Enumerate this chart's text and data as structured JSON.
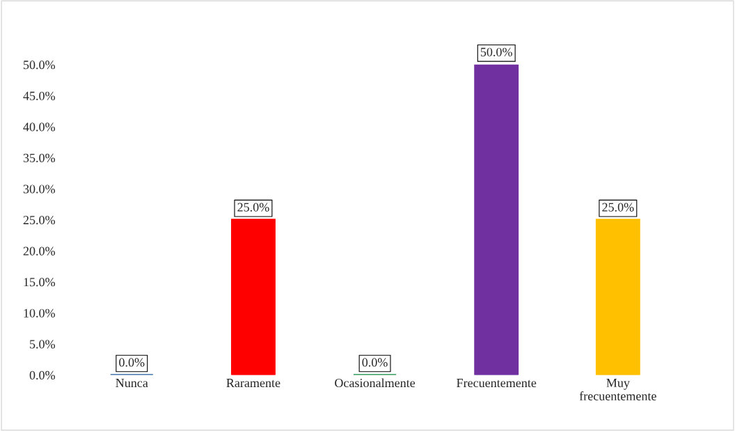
{
  "chart_data": {
    "type": "bar",
    "categories": [
      "Nunca",
      "Raramente",
      "Ocasionalmente",
      "Frecuentemente",
      "Muy frecuentemente"
    ],
    "values": [
      0,
      25,
      0,
      50,
      25
    ],
    "colors": [
      "#1f5c99",
      "#ff0000",
      "#0a8a3c",
      "#7030a0",
      "#ffc000"
    ],
    "value_labels": [
      "0.0%",
      "25.0%",
      "0.0%",
      "50.0%",
      "25.0%"
    ],
    "ylim": [
      0,
      50
    ],
    "yticks": [
      {
        "value": 0,
        "label": "0.0%"
      },
      {
        "value": 5,
        "label": "5.0%"
      },
      {
        "value": 10,
        "label": "10.0%"
      },
      {
        "value": 15,
        "label": "15.0%"
      },
      {
        "value": 20,
        "label": "20.0%"
      },
      {
        "value": 25,
        "label": "25.0%"
      },
      {
        "value": 30,
        "label": "30.0%"
      },
      {
        "value": 35,
        "label": "35.0%"
      },
      {
        "value": 40,
        "label": "40.0%"
      },
      {
        "value": 45,
        "label": "45.0%"
      },
      {
        "value": 50,
        "label": "50.0%"
      }
    ],
    "grid": false,
    "legend": false
  }
}
